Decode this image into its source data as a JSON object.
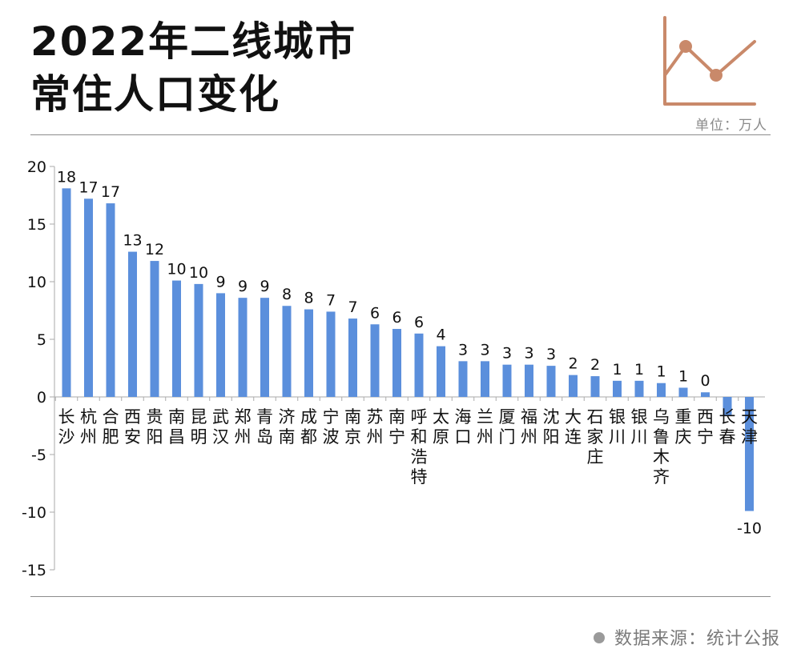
{
  "header": {
    "title_line1": "2022年二线城市",
    "title_line2": "常住人口变化",
    "unit": "单位：万人"
  },
  "footer": {
    "source": "数据来源：统计公报"
  },
  "colors": {
    "bar": "#5b8fdc",
    "axis": "#aaaaaa",
    "logo": "#c9896a"
  },
  "chart_data": {
    "type": "bar",
    "title": "2022年二线城市常住人口变化",
    "ylabel": "单位：万人",
    "ylim": [
      -15,
      20
    ],
    "yticks": [
      20,
      15,
      10,
      5,
      0,
      -5,
      -10,
      -15
    ],
    "categories": [
      "长沙",
      "杭州",
      "合肥",
      "西安",
      "贵阳",
      "南昌",
      "昆明",
      "武汉",
      "郑州",
      "青岛",
      "济南",
      "成都",
      "宁波",
      "南京",
      "苏州",
      "南宁",
      "呼和浩特",
      "太原",
      "海口",
      "兰州",
      "厦门",
      "福州",
      "沈阳",
      "大连",
      "石家庄",
      "银川",
      "银川",
      "乌鲁木齐",
      "重庆",
      "西宁",
      "长春",
      "天津"
    ],
    "values": [
      18.1,
      17.2,
      16.8,
      12.6,
      11.8,
      10.1,
      9.8,
      9.0,
      8.6,
      8.6,
      7.9,
      7.6,
      7.4,
      6.8,
      6.3,
      5.9,
      5.5,
      4.4,
      3.1,
      3.1,
      2.8,
      2.8,
      2.7,
      1.9,
      1.8,
      1.4,
      1.4,
      1.2,
      0.8,
      0.4,
      -1.6,
      -9.9
    ],
    "labels": [
      "18",
      "17",
      "17",
      "13",
      "12",
      "10",
      "10",
      "9",
      "9",
      "9",
      "8",
      "8",
      "7",
      "7",
      "6",
      "6",
      "6",
      "4",
      "3",
      "3",
      "3",
      "3",
      "3",
      "2",
      "2",
      "1",
      "1",
      "1",
      "1",
      "0",
      "",
      ""
    ],
    "neg_labels": [
      "",
      "",
      "",
      "",
      "",
      "",
      "",
      "",
      "",
      "",
      "",
      "",
      "",
      "",
      "",
      "",
      "",
      "",
      "",
      "",
      "",
      "",
      "",
      "",
      "",
      "",
      "",
      "",
      "",
      "",
      "",
      "-10"
    ]
  }
}
